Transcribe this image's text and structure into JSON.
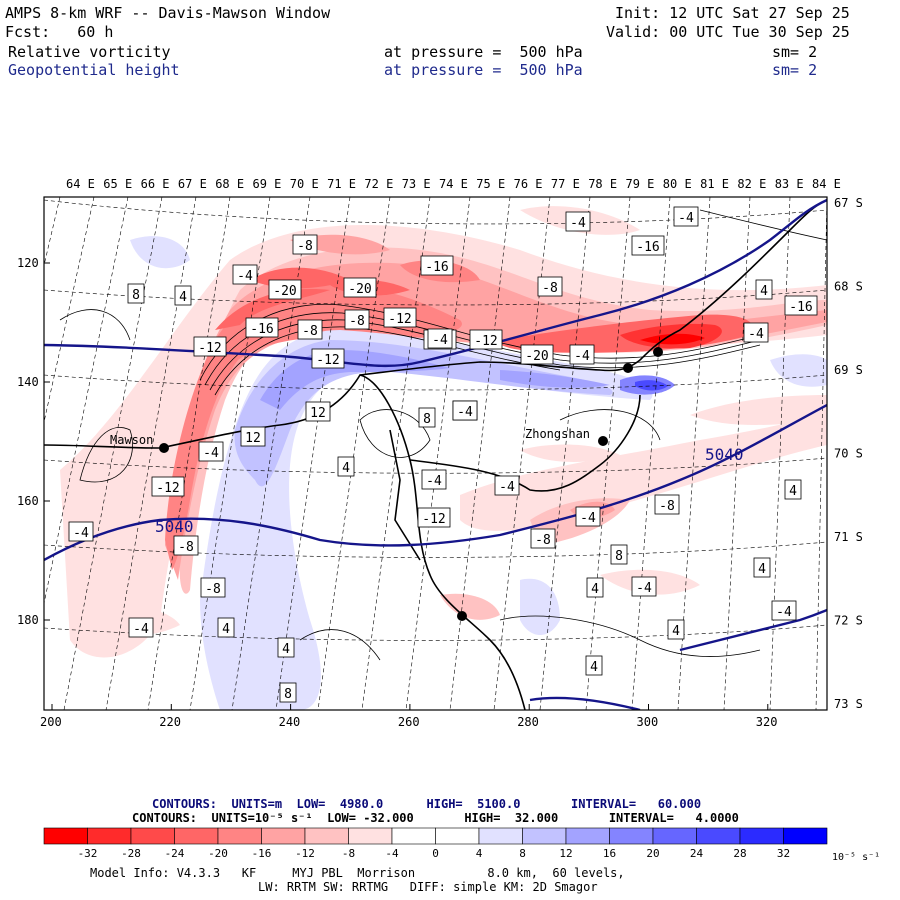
{
  "header": {
    "title_left": "AMPS 8-km WRF -- Davis-Mawson Window",
    "fcst": "Fcst:   60 h",
    "init": "Init: 12 UTC Sat 27 Sep 25",
    "valid": "Valid: 00 UTC Tue 30 Sep 25",
    "field1": {
      "name": "Relative vorticity",
      "pressure": "at pressure =  500 hPa",
      "sm": "sm= 2"
    },
    "field2": {
      "name": "Geopotential height",
      "pressure": "at pressure =  500 hPa",
      "sm": "sm= 2"
    }
  },
  "map": {
    "top_longitudes": [
      "64 E",
      "65 E",
      "66 E",
      "67 E",
      "68 E",
      "69 E",
      "70 E",
      "71 E",
      "72 E",
      "73 E",
      "74 E",
      "75 E",
      "76 E",
      "77 E",
      "78 E",
      "79 E",
      "80 E",
      "81 E",
      "82 E",
      "83 E",
      "84 E"
    ],
    "right_latitudes": [
      "67 S",
      "68 S",
      "69 S",
      "70 S",
      "71 S",
      "72 S",
      "73 S"
    ],
    "x_ticks": [
      "200",
      "220",
      "240",
      "260",
      "280",
      "300",
      "320"
    ],
    "y_ticks": [
      "120",
      "140",
      "160",
      "180"
    ],
    "stations": [
      "Mawson",
      "Zhongshan"
    ],
    "height_labels": [
      "5040",
      "5040"
    ],
    "vort_labels": [
      "-8",
      "-4",
      "-16",
      "-20",
      "-20",
      "-16",
      "-12",
      "-8",
      "-12",
      "-16",
      "-20",
      "-4",
      "-4",
      "-4",
      "-16",
      "-8",
      "8",
      "4",
      "4",
      "-4",
      "-12",
      "-12",
      "12",
      "-8",
      "-4",
      "12",
      "-12",
      "-8",
      "4",
      "-4",
      "-4",
      "-4",
      "-4",
      "-12",
      "-8",
      "-8",
      "-4",
      "4",
      "-4",
      "-8",
      "4",
      "4",
      "8",
      "8",
      "-4",
      "-16",
      "-4",
      "4",
      "4",
      "8",
      "-4",
      "4",
      "4",
      "-4"
    ]
  },
  "footer": {
    "contours1": "CONTOURS:  UNITS=m  LOW=  4980.0      HIGH=  5100.0       INTERVAL=   60.000",
    "contours2": "CONTOURS:  UNITS=10⁻⁵ s⁻¹  LOW= -32.000       HIGH=  32.000       INTERVAL=   4.0000",
    "colorbar_ticks": [
      "-32",
      "-28",
      "-24",
      "-20",
      "-16",
      "-12",
      "-8",
      "-4",
      "0",
      "4",
      "8",
      "12",
      "16",
      "20",
      "24",
      "28",
      "32"
    ],
    "colorbar_units": "10⁻⁵ s⁻¹",
    "colorbar_colors": [
      "#ff0000",
      "#ff2b2b",
      "#ff4a4a",
      "#ff6666",
      "#ff8484",
      "#ffa3a3",
      "#ffc2c2",
      "#ffe1e1",
      "#ffffff",
      "#ffffff",
      "#e1e1ff",
      "#c2c2ff",
      "#a3a3ff",
      "#8484ff",
      "#6666ff",
      "#4a4aff",
      "#2b2bff",
      "#0000ff"
    ],
    "model_info_1": "Model Info: V4.3.3   KF     MYJ PBL  Morrison          8.0 km,  60 levels,",
    "model_info_2": "LW: RRTM SW: RRTMG   DIFF: simple KM: 2D Smagor"
  }
}
